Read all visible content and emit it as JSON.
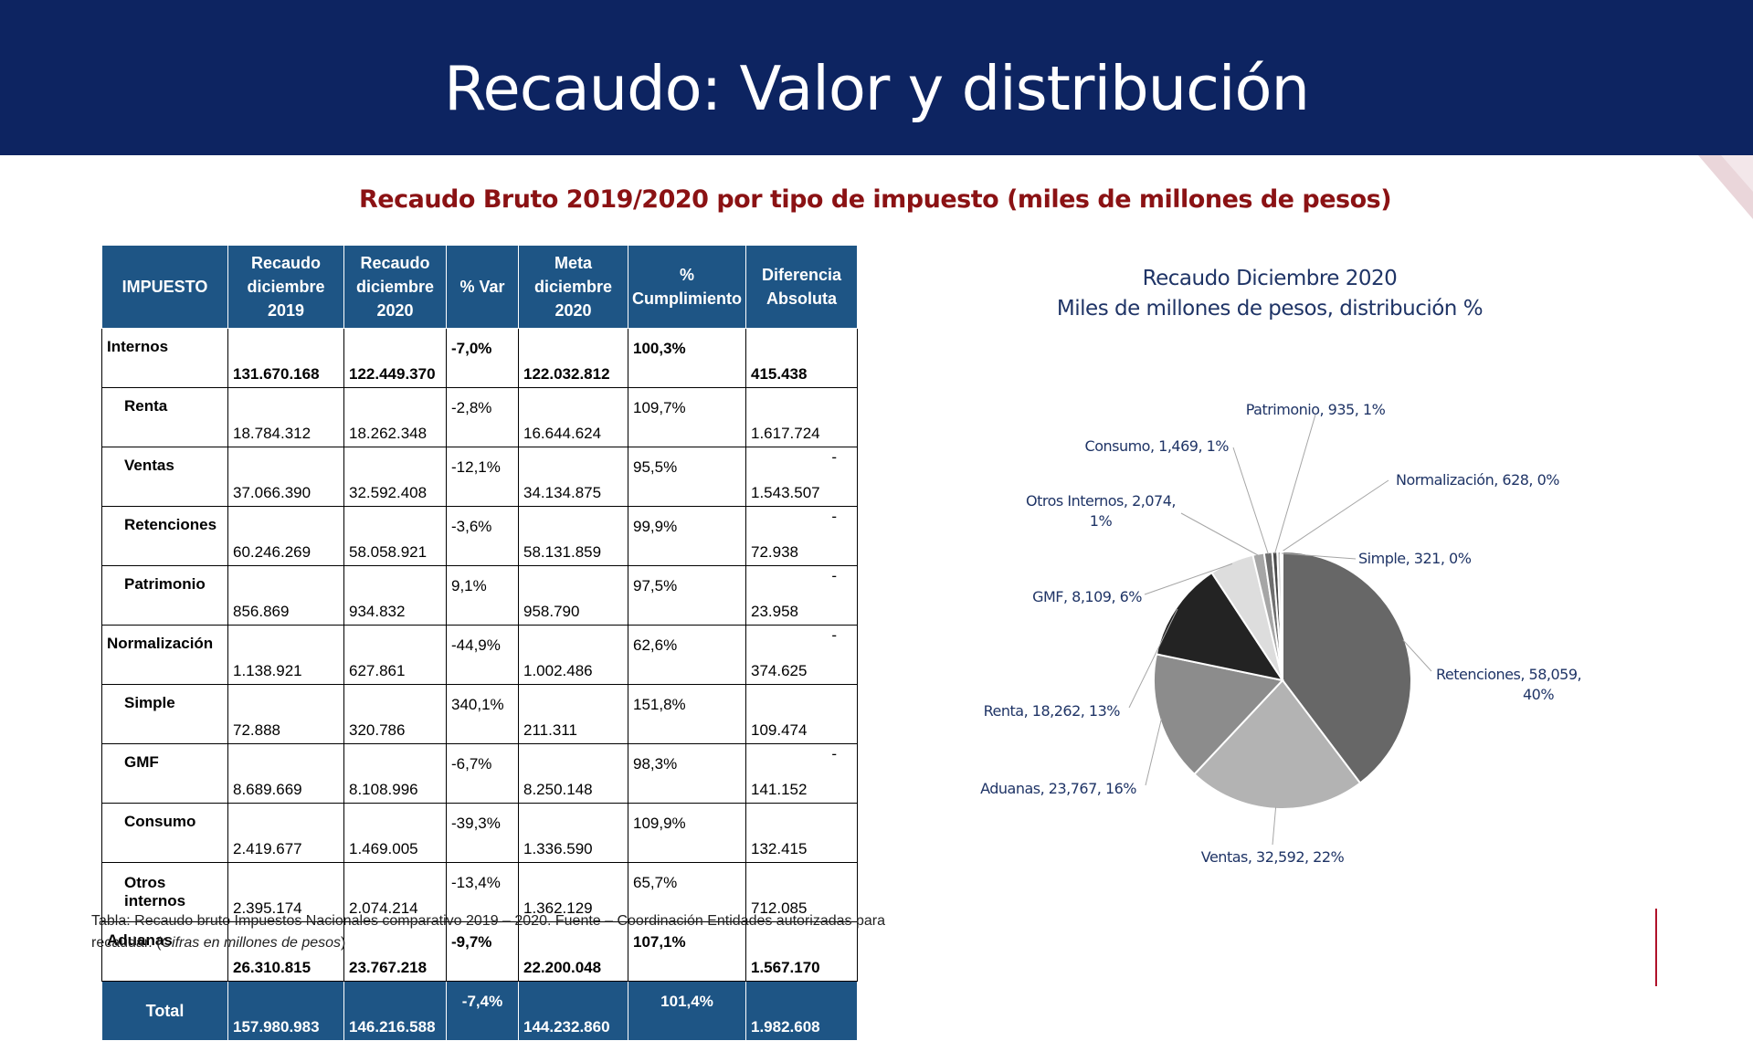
{
  "page": {
    "title": "Recaudo: Valor y distribución"
  },
  "subtitle": "Recaudo Bruto 2019/2020 por  tipo de impuesto (miles de millones de pesos)",
  "table": {
    "headers": [
      "IMPUESTO",
      "Recaudo diciembre 2019",
      "Recaudo diciembre 2020",
      "% Var",
      "Meta diciembre 2020",
      "% Cumplimiento",
      "Diferencia Absoluta"
    ],
    "rows": [
      {
        "name": "Internos",
        "v2019": "131.670.168",
        "v2020": "122.449.370",
        "var": "-7,0%",
        "meta": "122.032.812",
        "cumpl": "100,3%",
        "dif": "415.438",
        "dash": ""
      },
      {
        "name": "Renta",
        "v2019": "18.784.312",
        "v2020": "18.262.348",
        "var": "-2,8%",
        "meta": "16.644.624",
        "cumpl": "109,7%",
        "dif": "1.617.724",
        "dash": ""
      },
      {
        "name": "Ventas",
        "v2019": "37.066.390",
        "v2020": "32.592.408",
        "var": "-12,1%",
        "meta": "34.134.875",
        "cumpl": "95,5%",
        "dif": "1.543.507",
        "dash": "-"
      },
      {
        "name": "Retenciones",
        "v2019": "60.246.269",
        "v2020": "58.058.921",
        "var": "-3,6%",
        "meta": "58.131.859",
        "cumpl": "99,9%",
        "dif": "72.938",
        "dash": "-"
      },
      {
        "name": "Patrimonio",
        "v2019": "856.869",
        "v2020": "934.832",
        "var": "9,1%",
        "meta": "958.790",
        "cumpl": "97,5%",
        "dif": "23.958",
        "dash": "-"
      },
      {
        "name": "Normalización",
        "v2019": "1.138.921",
        "v2020": "627.861",
        "var": "-44,9%",
        "meta": "1.002.486",
        "cumpl": "62,6%",
        "dif": "374.625",
        "dash": "-"
      },
      {
        "name": "Simple",
        "v2019": "72.888",
        "v2020": "320.786",
        "var": "340,1%",
        "meta": "211.311",
        "cumpl": "151,8%",
        "dif": "109.474",
        "dash": ""
      },
      {
        "name": "GMF",
        "v2019": "8.689.669",
        "v2020": "8.108.996",
        "var": "-6,7%",
        "meta": "8.250.148",
        "cumpl": "98,3%",
        "dif": "141.152",
        "dash": "-"
      },
      {
        "name": "Consumo",
        "v2019": "2.419.677",
        "v2020": "1.469.005",
        "var": "-39,3%",
        "meta": "1.336.590",
        "cumpl": "109,9%",
        "dif": "132.415",
        "dash": ""
      },
      {
        "name": "Otros internos",
        "v2019": "2.395.174",
        "v2020": "2.074.214",
        "var": "-13,4%",
        "meta": "1.362.129",
        "cumpl": "65,7%",
        "dif": "712.085",
        "dash": ""
      },
      {
        "name": "Aduanas",
        "v2019": "26.310.815",
        "v2020": "23.767.218",
        "var": "-9,7%",
        "meta": "22.200.048",
        "cumpl": "107,1%",
        "dif": "1.567.170",
        "dash": ""
      }
    ],
    "total": {
      "name": "Total",
      "v2019": "157.980.983",
      "v2020": "146.216.588",
      "var": "-7,4%",
      "meta": "144.232.860",
      "cumpl": "101,4%",
      "dif": "1.982.608"
    }
  },
  "caption": {
    "text": "Tabla: Recaudo bruto Impuestos Nacionales comparativo 2019 – 2020.  Fuente – Coordinación Entidades autorizadas para recaudar. (",
    "italic": "Cifras en millones de pesos",
    "end": ")"
  },
  "chart_data": {
    "type": "pie",
    "title": "Recaudo Diciembre 2020",
    "subtitle": "Miles de millones de pesos, distribución %",
    "slices": [
      {
        "label": "Retenciones",
        "value": 58059,
        "text": [
          "Retenciones, 58,059,",
          "40%"
        ],
        "color": "#676767"
      },
      {
        "label": "Ventas",
        "value": 32592,
        "text": [
          "Ventas, 32,592, 22%"
        ],
        "color": "#b3b3b3"
      },
      {
        "label": "Aduanas",
        "value": 23767,
        "text": [
          "Aduanas, 23,767, 16%"
        ],
        "color": "#8c8c8c"
      },
      {
        "label": "Renta",
        "value": 18262,
        "text": [
          "Renta, 18,262, 13%"
        ],
        "color": "#232323"
      },
      {
        "label": "GMF",
        "value": 8109,
        "text": [
          "GMF, 8,109, 6%"
        ],
        "color": "#dddddd"
      },
      {
        "label": "Otros Internos",
        "value": 2074,
        "text": [
          "Otros Internos, 2,074,",
          "1%"
        ],
        "color": "#a6a6a6"
      },
      {
        "label": "Consumo",
        "value": 1469,
        "text": [
          "Consumo, 1,469, 1%"
        ],
        "color": "#6e6e6e"
      },
      {
        "label": "Patrimonio",
        "value": 935,
        "text": [
          "Patrimonio, 935, 1%"
        ],
        "color": "#4a4a4a"
      },
      {
        "label": "Normalización",
        "value": 628,
        "text": [
          "Normalización, 628, 0%"
        ],
        "color": "#c8c8c8"
      },
      {
        "label": "Simple",
        "value": 321,
        "text": [
          "Simple, 321, 0%"
        ],
        "color": "#8a8a8a"
      }
    ]
  }
}
